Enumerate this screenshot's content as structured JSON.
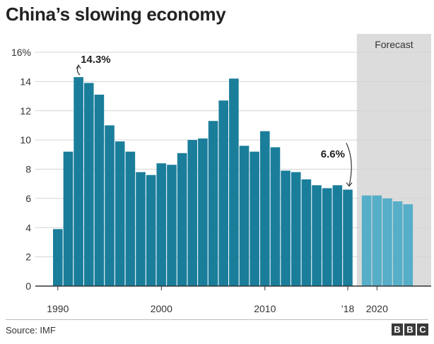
{
  "title": "China’s slowing economy",
  "source": "Source: IMF",
  "brand": [
    "B",
    "B",
    "C"
  ],
  "colors": {
    "bar": "#1a7e9b",
    "forecast_bar": "#56aec8",
    "forecast_bg": "#dcdcdc",
    "grid": "#d4d4d4",
    "axis": "#333333",
    "text": "#222222"
  },
  "chart_data": {
    "type": "bar",
    "ylim": [
      0,
      16
    ],
    "y_ticks": [
      "0",
      "2",
      "4",
      "6",
      "8",
      "10",
      "12",
      "14",
      "16%"
    ],
    "x_tick_labels": [
      "1990",
      "2000",
      "2010",
      "’18",
      "2020"
    ],
    "forecast_label": "Forecast",
    "annotations": [
      {
        "text": "14.3%",
        "year": 1992
      },
      {
        "text": "6.6%",
        "year": 2018
      }
    ],
    "series": [
      {
        "years": [
          1990,
          1991,
          1992,
          1993,
          1994,
          1995,
          1996,
          1997,
          1998,
          1999,
          2000,
          2001,
          2002,
          2003,
          2004,
          2005,
          2006,
          2007,
          2008,
          2009,
          2010,
          2011,
          2012,
          2013,
          2014,
          2015,
          2016,
          2017,
          2018
        ],
        "values": [
          3.9,
          9.2,
          14.3,
          13.9,
          13.1,
          11.0,
          9.9,
          9.2,
          7.8,
          7.6,
          8.4,
          8.3,
          9.1,
          10.0,
          10.1,
          11.3,
          12.7,
          14.2,
          9.6,
          9.2,
          10.6,
          9.5,
          7.9,
          7.8,
          7.3,
          6.9,
          6.7,
          6.9,
          6.6
        ]
      },
      {
        "forecast": true,
        "years": [
          2019,
          2020,
          2021,
          2022,
          2023
        ],
        "values": [
          6.2,
          6.2,
          6.0,
          5.8,
          5.6
        ]
      }
    ]
  }
}
